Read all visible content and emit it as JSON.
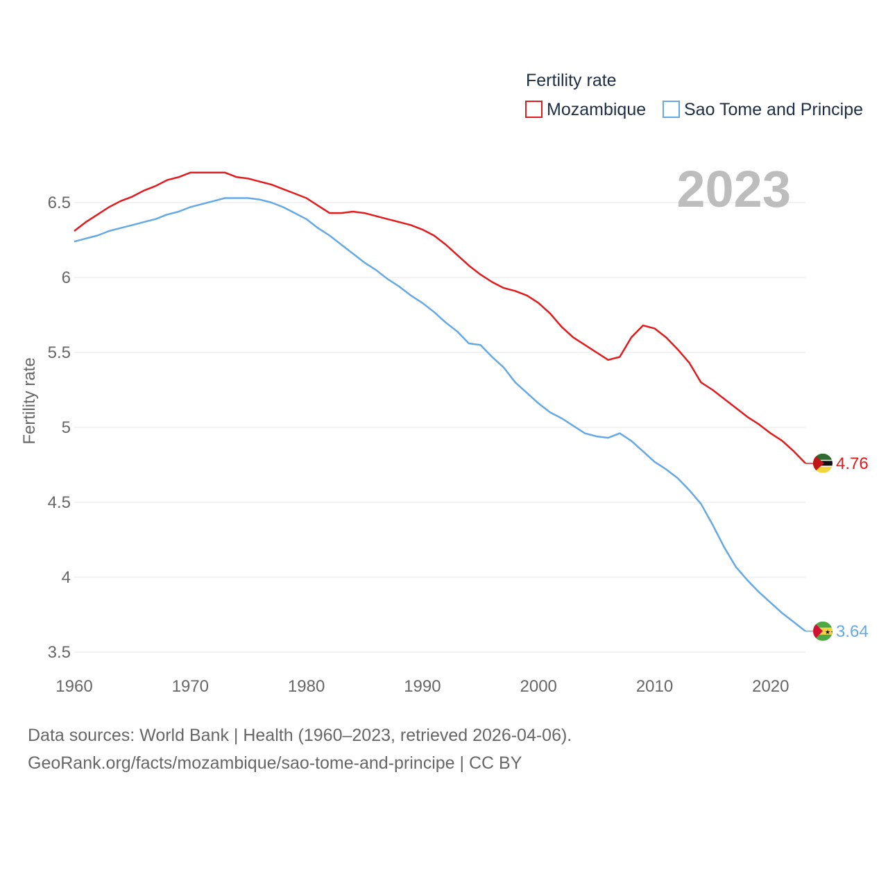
{
  "chart_data": {
    "type": "line",
    "title": "",
    "legend_title": "Fertility rate",
    "ylabel": "Fertility rate",
    "xlabel": "",
    "year_label": "2023",
    "xlim": [
      1960,
      2023
    ],
    "ylim": [
      3.5,
      6.75
    ],
    "x_ticks": [
      1960,
      1970,
      1980,
      1990,
      2000,
      2010,
      2020
    ],
    "y_ticks": [
      3.5,
      4,
      4.5,
      5,
      5.5,
      6,
      6.5
    ],
    "y_tick_labels": [
      "3.5",
      "4",
      "4.5",
      "5",
      "5.5",
      "6",
      "6.5"
    ],
    "x": [
      1960,
      1961,
      1962,
      1963,
      1964,
      1965,
      1966,
      1967,
      1968,
      1969,
      1970,
      1971,
      1972,
      1973,
      1974,
      1975,
      1976,
      1977,
      1978,
      1979,
      1980,
      1981,
      1982,
      1983,
      1984,
      1985,
      1986,
      1987,
      1988,
      1989,
      1990,
      1991,
      1992,
      1993,
      1994,
      1995,
      1996,
      1997,
      1998,
      1999,
      2000,
      2001,
      2002,
      2003,
      2004,
      2005,
      2006,
      2007,
      2008,
      2009,
      2010,
      2011,
      2012,
      2013,
      2014,
      2015,
      2016,
      2017,
      2018,
      2019,
      2020,
      2021,
      2022,
      2023
    ],
    "series": [
      {
        "name": "Mozambique",
        "color": "#e31a1c",
        "end_label": "4.76",
        "values": [
          6.31,
          6.37,
          6.42,
          6.47,
          6.51,
          6.54,
          6.58,
          6.61,
          6.65,
          6.67,
          6.7,
          6.7,
          6.7,
          6.7,
          6.67,
          6.66,
          6.64,
          6.62,
          6.59,
          6.56,
          6.53,
          6.48,
          6.43,
          6.43,
          6.44,
          6.43,
          6.41,
          6.39,
          6.37,
          6.35,
          6.32,
          6.28,
          6.22,
          6.15,
          6.08,
          6.02,
          5.97,
          5.93,
          5.91,
          5.88,
          5.83,
          5.76,
          5.67,
          5.6,
          5.55,
          5.5,
          5.45,
          5.47,
          5.6,
          5.68,
          5.66,
          5.6,
          5.52,
          5.43,
          5.3,
          5.25,
          5.19,
          5.13,
          5.07,
          5.02,
          4.96,
          4.91,
          4.84,
          4.76
        ]
      },
      {
        "name": "Sao Tome and Principe",
        "color": "#64a9e6",
        "end_label": "3.64",
        "values": [
          6.24,
          6.26,
          6.28,
          6.31,
          6.33,
          6.35,
          6.37,
          6.39,
          6.42,
          6.44,
          6.47,
          6.49,
          6.51,
          6.53,
          6.53,
          6.53,
          6.52,
          6.5,
          6.47,
          6.43,
          6.39,
          6.33,
          6.28,
          6.22,
          6.16,
          6.1,
          6.05,
          5.99,
          5.94,
          5.88,
          5.83,
          5.77,
          5.7,
          5.64,
          5.56,
          5.55,
          5.47,
          5.4,
          5.3,
          5.23,
          5.16,
          5.1,
          5.06,
          5.01,
          4.96,
          4.94,
          4.93,
          4.96,
          4.91,
          4.84,
          4.77,
          4.72,
          4.66,
          4.58,
          4.49,
          4.35,
          4.2,
          4.07,
          3.98,
          3.9,
          3.83,
          3.76,
          3.7,
          3.64
        ]
      }
    ]
  },
  "footer": {
    "line1": "Data sources: World Bank | Health (1960–2023, retrieved 2026-04-06).",
    "line2": "GeoRank.org/facts/mozambique/sao-tome-and-principe | CC BY"
  }
}
